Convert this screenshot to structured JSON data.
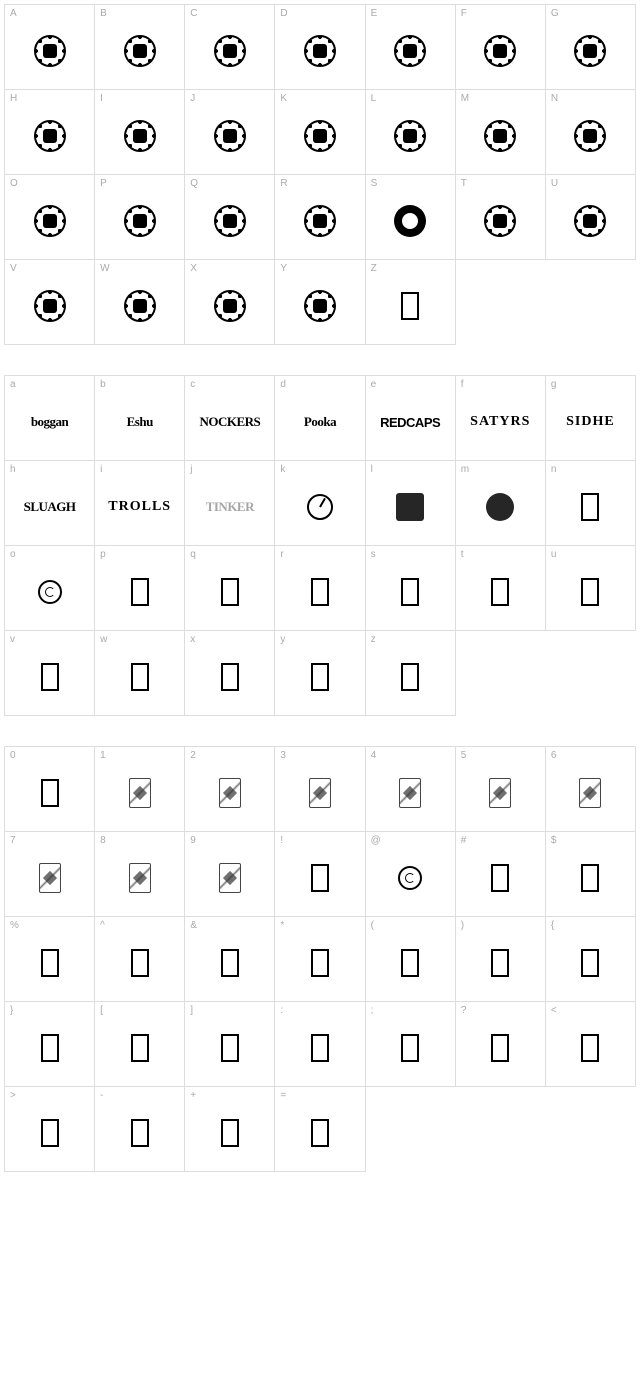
{
  "sections": [
    {
      "id": "uppercase",
      "cells": [
        {
          "label": "A",
          "type": "ring"
        },
        {
          "label": "B",
          "type": "ring"
        },
        {
          "label": "C",
          "type": "ring"
        },
        {
          "label": "D",
          "type": "ring"
        },
        {
          "label": "E",
          "type": "ring"
        },
        {
          "label": "F",
          "type": "ring"
        },
        {
          "label": "G",
          "type": "ring"
        },
        {
          "label": "H",
          "type": "ring"
        },
        {
          "label": "I",
          "type": "ring"
        },
        {
          "label": "J",
          "type": "ring"
        },
        {
          "label": "K",
          "type": "ring"
        },
        {
          "label": "L",
          "type": "ring"
        },
        {
          "label": "M",
          "type": "ring"
        },
        {
          "label": "N",
          "type": "ring"
        },
        {
          "label": "O",
          "type": "ring"
        },
        {
          "label": "P",
          "type": "ring"
        },
        {
          "label": "Q",
          "type": "ring"
        },
        {
          "label": "R",
          "type": "ring"
        },
        {
          "label": "S",
          "type": "ring-dark"
        },
        {
          "label": "T",
          "type": "ring"
        },
        {
          "label": "U",
          "type": "ring"
        },
        {
          "label": "V",
          "type": "ring"
        },
        {
          "label": "W",
          "type": "ring"
        },
        {
          "label": "X",
          "type": "ring"
        },
        {
          "label": "Y",
          "type": "ring"
        },
        {
          "label": "Z",
          "type": "empty-box"
        }
      ],
      "fill_to": 28
    },
    {
      "id": "lowercase",
      "cells": [
        {
          "label": "a",
          "type": "word",
          "text": "boggan",
          "style": "word-glyph"
        },
        {
          "label": "b",
          "type": "word",
          "text": "Eshu",
          "style": "word-glyph"
        },
        {
          "label": "c",
          "type": "word",
          "text": "NOCKERS",
          "style": "word-glyph"
        },
        {
          "label": "d",
          "type": "word",
          "text": "Pooka",
          "style": "word-glyph"
        },
        {
          "label": "e",
          "type": "word",
          "text": "REDCAPS",
          "style": "word-drip word-glyph"
        },
        {
          "label": "f",
          "type": "word",
          "text": "SATYRS",
          "style": "word-serif word-glyph"
        },
        {
          "label": "g",
          "type": "word",
          "text": "SIDHE",
          "style": "word-serif word-glyph"
        },
        {
          "label": "h",
          "type": "word",
          "text": "SLUAGH",
          "style": "word-glyph"
        },
        {
          "label": "i",
          "type": "word",
          "text": "TROLLS",
          "style": "word-serif word-glyph"
        },
        {
          "label": "j",
          "type": "word",
          "text": "TINKER",
          "style": "word-glyph",
          "faded": true
        },
        {
          "label": "k",
          "type": "clock"
        },
        {
          "label": "l",
          "type": "tiny-icon"
        },
        {
          "label": "m",
          "type": "tiny-icon-circle"
        },
        {
          "label": "n",
          "type": "empty-box"
        },
        {
          "label": "o",
          "type": "swirl"
        },
        {
          "label": "p",
          "type": "empty-box"
        },
        {
          "label": "q",
          "type": "empty-box"
        },
        {
          "label": "r",
          "type": "empty-box"
        },
        {
          "label": "s",
          "type": "empty-box"
        },
        {
          "label": "t",
          "type": "empty-box"
        },
        {
          "label": "u",
          "type": "empty-box"
        },
        {
          "label": "v",
          "type": "empty-box"
        },
        {
          "label": "w",
          "type": "empty-box"
        },
        {
          "label": "x",
          "type": "empty-box"
        },
        {
          "label": "y",
          "type": "empty-box"
        },
        {
          "label": "z",
          "type": "empty-box"
        }
      ],
      "fill_to": 28
    },
    {
      "id": "symbols",
      "cells": [
        {
          "label": "0",
          "type": "empty-box"
        },
        {
          "label": "1",
          "type": "card"
        },
        {
          "label": "2",
          "type": "card"
        },
        {
          "label": "3",
          "type": "card"
        },
        {
          "label": "4",
          "type": "card"
        },
        {
          "label": "5",
          "type": "card"
        },
        {
          "label": "6",
          "type": "card"
        },
        {
          "label": "7",
          "type": "card"
        },
        {
          "label": "8",
          "type": "card"
        },
        {
          "label": "9",
          "type": "card"
        },
        {
          "label": "!",
          "type": "empty-box"
        },
        {
          "label": "@",
          "type": "swirl"
        },
        {
          "label": "#",
          "type": "empty-box"
        },
        {
          "label": "$",
          "type": "empty-box"
        },
        {
          "label": "%",
          "type": "empty-box"
        },
        {
          "label": "^",
          "type": "empty-box"
        },
        {
          "label": "&",
          "type": "empty-box"
        },
        {
          "label": "*",
          "type": "empty-box"
        },
        {
          "label": "(",
          "type": "empty-box"
        },
        {
          "label": ")",
          "type": "empty-box"
        },
        {
          "label": "{",
          "type": "empty-box"
        },
        {
          "label": "}",
          "type": "empty-box"
        },
        {
          "label": "[",
          "type": "empty-box"
        },
        {
          "label": "]",
          "type": "empty-box"
        },
        {
          "label": ":",
          "type": "empty-box"
        },
        {
          "label": ";",
          "type": "empty-box"
        },
        {
          "label": "?",
          "type": "empty-box"
        },
        {
          "label": "<",
          "type": "empty-box"
        },
        {
          "label": ">",
          "type": "empty-box"
        },
        {
          "label": "-",
          "type": "empty-box"
        },
        {
          "label": "+",
          "type": "empty-box"
        },
        {
          "label": "=",
          "type": "empty-box"
        }
      ],
      "fill_to": 35
    }
  ],
  "colors": {
    "border": "#dddddd",
    "label": "#aaaaaa",
    "glyph": "#000000",
    "background": "#ffffff"
  }
}
